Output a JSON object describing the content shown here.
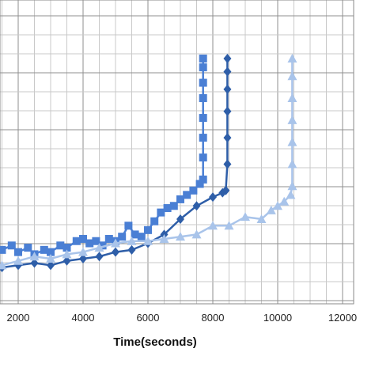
{
  "chart_data": {
    "type": "line",
    "title": "",
    "xlabel": "Time(seconds)",
    "ylabel": "",
    "xlim": [
      1500,
      12000
    ],
    "ylim": [
      0,
      1
    ],
    "x_ticks": [
      "2000",
      "4000",
      "6000",
      "8000",
      "10000",
      "12000"
    ],
    "x_tick_values": [
      2000,
      4000,
      6000,
      8000,
      10000,
      12000
    ],
    "grid": true,
    "legend": "none",
    "series": [
      {
        "marker": "square",
        "color": "#4a7fd4",
        "x": [
          1500,
          1800,
          2000,
          2300,
          2500,
          2800,
          3000,
          3300,
          3500,
          3800,
          4000,
          4200,
          4400,
          4600,
          4800,
          5000,
          5200,
          5400,
          5600,
          5800,
          6000,
          6200,
          6400,
          6600,
          6800,
          7000,
          7200,
          7400,
          7600,
          7700,
          7700,
          7700,
          7700,
          7700,
          7700,
          7700,
          7700
        ],
        "y": [
          0.13,
          0.15,
          0.12,
          0.14,
          0.11,
          0.13,
          0.12,
          0.15,
          0.14,
          0.17,
          0.18,
          0.16,
          0.17,
          0.15,
          0.18,
          0.17,
          0.19,
          0.24,
          0.2,
          0.19,
          0.22,
          0.26,
          0.3,
          0.32,
          0.33,
          0.36,
          0.38,
          0.4,
          0.43,
          0.45,
          0.55,
          0.64,
          0.73,
          0.82,
          0.89,
          0.96,
          1.0
        ]
      },
      {
        "marker": "diamond",
        "color": "#2e5ea8",
        "x": [
          1500,
          2000,
          2500,
          3000,
          3500,
          4000,
          4500,
          5000,
          5500,
          6000,
          6500,
          7000,
          7500,
          8000,
          8300,
          8400,
          8450,
          8450,
          8450,
          8450,
          8450,
          8450
        ],
        "y": [
          0.05,
          0.06,
          0.07,
          0.06,
          0.08,
          0.09,
          0.1,
          0.12,
          0.13,
          0.16,
          0.2,
          0.27,
          0.33,
          0.37,
          0.39,
          0.4,
          0.52,
          0.64,
          0.76,
          0.86,
          0.94,
          1.0
        ]
      },
      {
        "marker": "triangle",
        "color": "#a9c4ea",
        "x": [
          1500,
          2000,
          2500,
          3000,
          3500,
          4000,
          4500,
          5000,
          5500,
          6000,
          6500,
          7000,
          7500,
          8000,
          8500,
          9000,
          9500,
          9800,
          10000,
          10200,
          10400,
          10450,
          10450,
          10450,
          10450,
          10450,
          10450,
          10450
        ],
        "y": [
          0.06,
          0.08,
          0.1,
          0.09,
          0.11,
          0.12,
          0.14,
          0.16,
          0.17,
          0.17,
          0.18,
          0.19,
          0.2,
          0.24,
          0.24,
          0.28,
          0.27,
          0.31,
          0.33,
          0.35,
          0.38,
          0.42,
          0.52,
          0.62,
          0.72,
          0.82,
          0.92,
          1.0
        ]
      }
    ]
  }
}
